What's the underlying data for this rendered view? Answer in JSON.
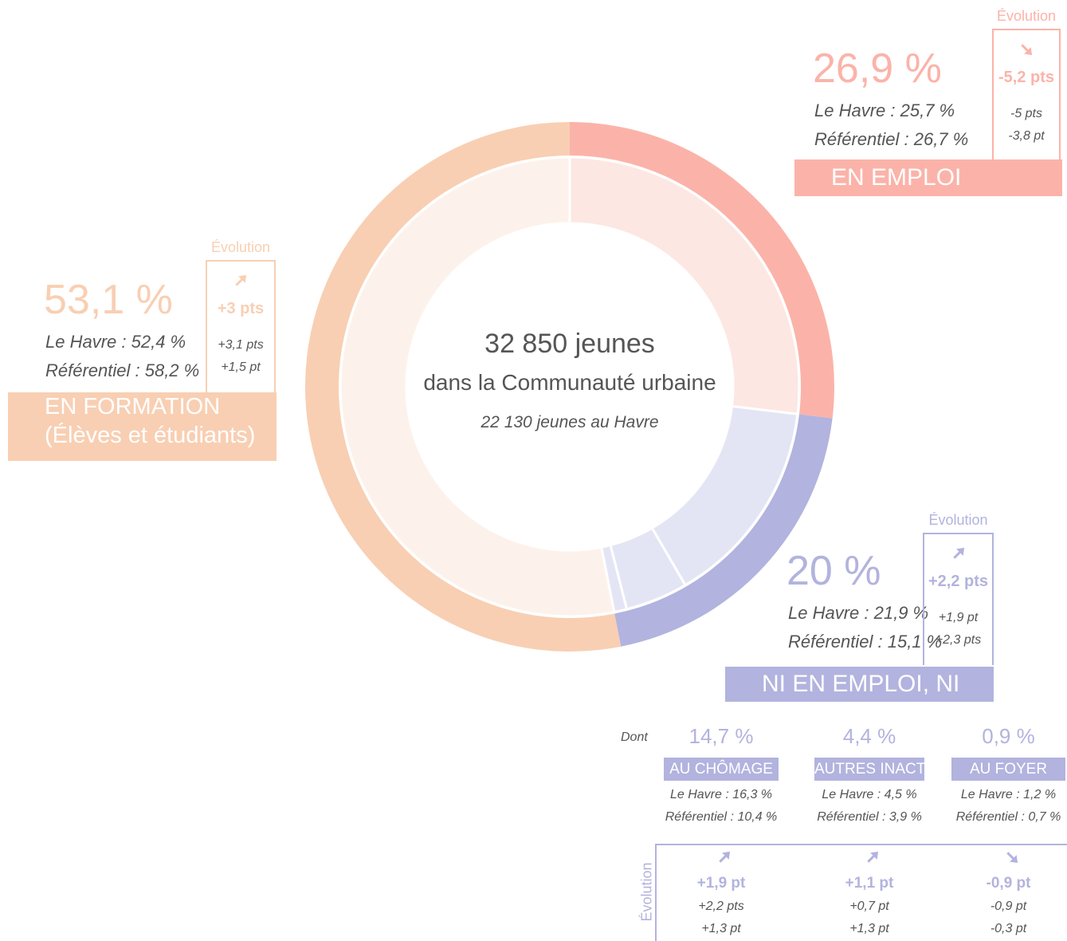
{
  "chart_data": {
    "type": "donut",
    "title": "32 850 jeunes",
    "subtitle": "dans la Communauté urbaine",
    "note": "22 130 jeunes au Havre",
    "categories": [
      "EN EMPLOI",
      "NI EN EMPLOI, NI EN FORMATION",
      "EN FORMATION\n(Élèves et étudiants)"
    ],
    "values": [
      26.9,
      20,
      53.1
    ],
    "value_labels": [
      "26,9 %",
      "20 %",
      "53,1 %"
    ],
    "colors": [
      "#fbb3a9",
      "#b2b3de",
      "#f8cfb3"
    ],
    "inner_colors": [
      "#fde7e3",
      "#e4e5f4",
      "#fdf2eb"
    ],
    "details": [
      {
        "le_havre": "Le Havre : 25,7 %",
        "referentiel": "Référentiel : 26,7 %",
        "evolution_label": "Évolution",
        "evolution": "-5,2 pts",
        "evolution_le_havre": "-5 pts",
        "evolution_referentiel": "-3,8 pt"
      },
      {
        "le_havre": "Le Havre : 21,9 %",
        "referentiel": "Référentiel : 15,1 %",
        "evolution_label": "Évolution",
        "evolution": "+2,2 pts",
        "evolution_le_havre": "+1,9 pt",
        "evolution_referentiel": "+2,3 pts"
      },
      {
        "le_havre": "Le Havre : 52,4 %",
        "referentiel": "Référentiel : 58,2 %",
        "evolution_label": "Évolution",
        "evolution": "+3 pts",
        "evolution_le_havre": "+3,1 pts",
        "evolution_referentiel": "+1,5 pt"
      }
    ],
    "breakdown": {
      "label": "Dont",
      "evolution_label": "Évolution",
      "categories": [
        "AU CHÔMAGE",
        "AUTRES INACTIFS",
        "AU FOYER"
      ],
      "values": [
        14.7,
        4.4,
        0.9
      ],
      "value_labels": [
        "14,7 %",
        "4,4 %",
        "0,9 %"
      ],
      "le_havre": [
        "Le Havre : 16,3 %",
        "Le Havre : 4,5 %",
        "Le Havre : 1,2 %"
      ],
      "referentiel": [
        "Référentiel : 10,4 %",
        "Référentiel : 3,9 %",
        "Référentiel : 0,7 %"
      ],
      "evolution": [
        "+1,9 pt",
        "+1,1 pt",
        "-0,9 pt"
      ],
      "evolution_le_havre": [
        "+2,2 pts",
        "+0,7 pt",
        "-0,9 pt"
      ],
      "evolution_referentiel": [
        "+1,3 pt",
        "+1,3 pt",
        "-0,3 pt"
      ]
    }
  }
}
